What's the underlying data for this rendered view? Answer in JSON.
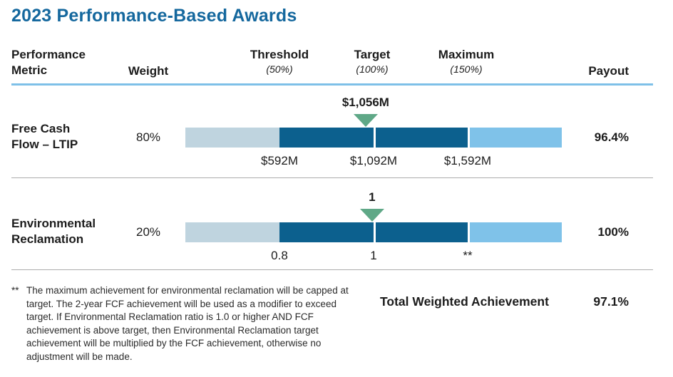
{
  "title": "2023 Performance-Based Awards",
  "colors": {
    "title-blue": "#15689E",
    "rule-blue": "#7EC0E8",
    "pale-blue": "#BFD4DF",
    "dark-blue": "#0C608E",
    "sky-blue": "#7FC2E9",
    "marker-green": "#5FA887",
    "sep-gray": "#ACACAC"
  },
  "header": {
    "metric_line1": "Performance",
    "metric_line2": "Metric",
    "weight": "Weight",
    "threshold": "Threshold",
    "threshold_sub": "(50%)",
    "target": "Target",
    "target_sub": "(100%)",
    "maximum": "Maximum",
    "maximum_sub": "(150%)",
    "payout": "Payout"
  },
  "rows": [
    {
      "metric_line1": "Free Cash",
      "metric_line2": "Flow – LTIP",
      "weight": "80%",
      "achievement_label": "$1,056M",
      "marker_left": "47.9%",
      "ticks": [
        "$592M",
        "$1,092M",
        "$1,592M"
      ],
      "payout": "96.4%"
    },
    {
      "metric_line1": "Environmental",
      "metric_line2": "Reclamation",
      "weight": "20%",
      "achievement_label": "1",
      "marker_left": "49.6%",
      "ticks": [
        "0.8",
        "1",
        "**"
      ],
      "payout": "100%"
    }
  ],
  "footnote": {
    "marker": "**",
    "text": "The maximum achievement for environmental reclamation will be capped at target. The 2-year FCF achievement will be used as a modifier to exceed target. If Environmental Reclamation ratio is 1.0 or higher AND FCF achievement is above target, then Environmental Reclamation target achievement will be multiplied by the FCF achievement, otherwise no adjustment will be made."
  },
  "total": {
    "label": "Total Weighted Achievement",
    "value": "97.1%"
  },
  "chart_data": {
    "type": "bar",
    "title": "2023 Performance-Based Awards",
    "scale_labels": {
      "threshold": "50%",
      "target": "100%",
      "maximum": "150%"
    },
    "series": [
      {
        "metric": "Free Cash Flow – LTIP",
        "weight_pct": 80,
        "threshold": "$592M",
        "target": "$1,092M",
        "maximum": "$1,592M",
        "achievement": "$1,056M",
        "payout_pct": 96.4
      },
      {
        "metric": "Environmental Reclamation",
        "weight_pct": 20,
        "threshold": "0.8",
        "target": "1",
        "maximum": "**",
        "achievement": "1",
        "payout_pct": 100
      }
    ],
    "total_weighted_achievement_pct": 97.1,
    "legend_position": "none",
    "grid": false
  }
}
